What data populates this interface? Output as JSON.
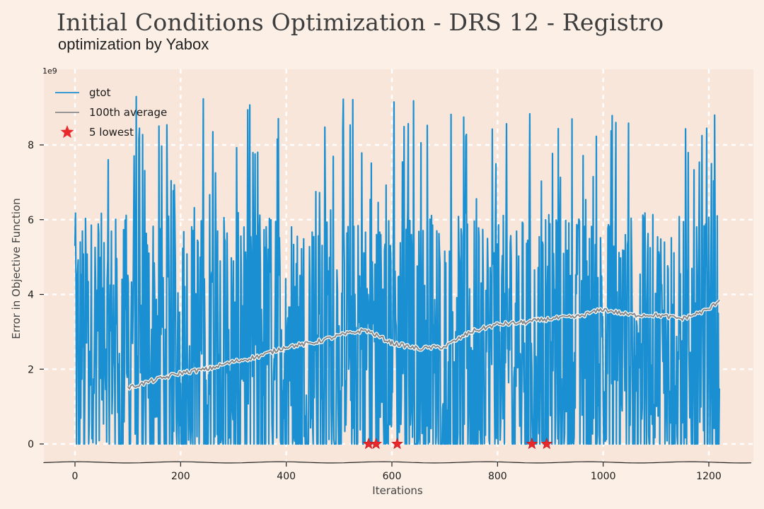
{
  "header": {
    "title": "Initial Conditions Optimization - DRS 12 - Registro",
    "subtitle": "optimization by Yabox"
  },
  "chart_data": {
    "type": "line",
    "title": "Initial Conditions Optimization - DRS 12 - Registro",
    "subtitle": "optimization by Yabox",
    "xlabel": "Iterations",
    "ylabel": "Error in Objective Function",
    "y_offset_label": "1e9",
    "xlim": [
      -60,
      1280
    ],
    "ylim": [
      -0.45,
      9.9
    ],
    "x_ticks": [
      0,
      200,
      400,
      600,
      800,
      1000,
      1200
    ],
    "y_ticks": [
      0,
      2,
      4,
      6,
      8
    ],
    "grid": true,
    "legend_position": "top-left",
    "colors": {
      "gtot": "#1a8fd1",
      "average": "#8a8a8a",
      "lowest": "#e8282c",
      "plot_bg": "#f9e6da",
      "page_bg": "#fcf0e6"
    },
    "series": [
      {
        "name": "gtot",
        "note": "noisy series, values range roughly 0 to 9.4 (x1e9) across iterations 0-1220",
        "approx_max": 9.4,
        "approx_min": 0
      },
      {
        "name": "100th average",
        "x": [
          100,
          150,
          200,
          250,
          300,
          350,
          400,
          450,
          500,
          550,
          600,
          650,
          700,
          750,
          800,
          850,
          900,
          950,
          1000,
          1050,
          1100,
          1150,
          1200,
          1220
        ],
        "values": [
          1.5,
          1.7,
          1.9,
          2.0,
          2.2,
          2.35,
          2.6,
          2.7,
          2.9,
          3.05,
          2.7,
          2.55,
          2.6,
          3.0,
          3.2,
          3.25,
          3.35,
          3.4,
          3.6,
          3.45,
          3.45,
          3.35,
          3.6,
          3.85
        ]
      },
      {
        "name": "5 lowest",
        "x": [
          556,
          570,
          610,
          865,
          893
        ],
        "values": [
          0,
          0,
          0,
          0,
          0
        ]
      }
    ],
    "legend": [
      "gtot",
      "100th average",
      "5 lowest"
    ]
  }
}
